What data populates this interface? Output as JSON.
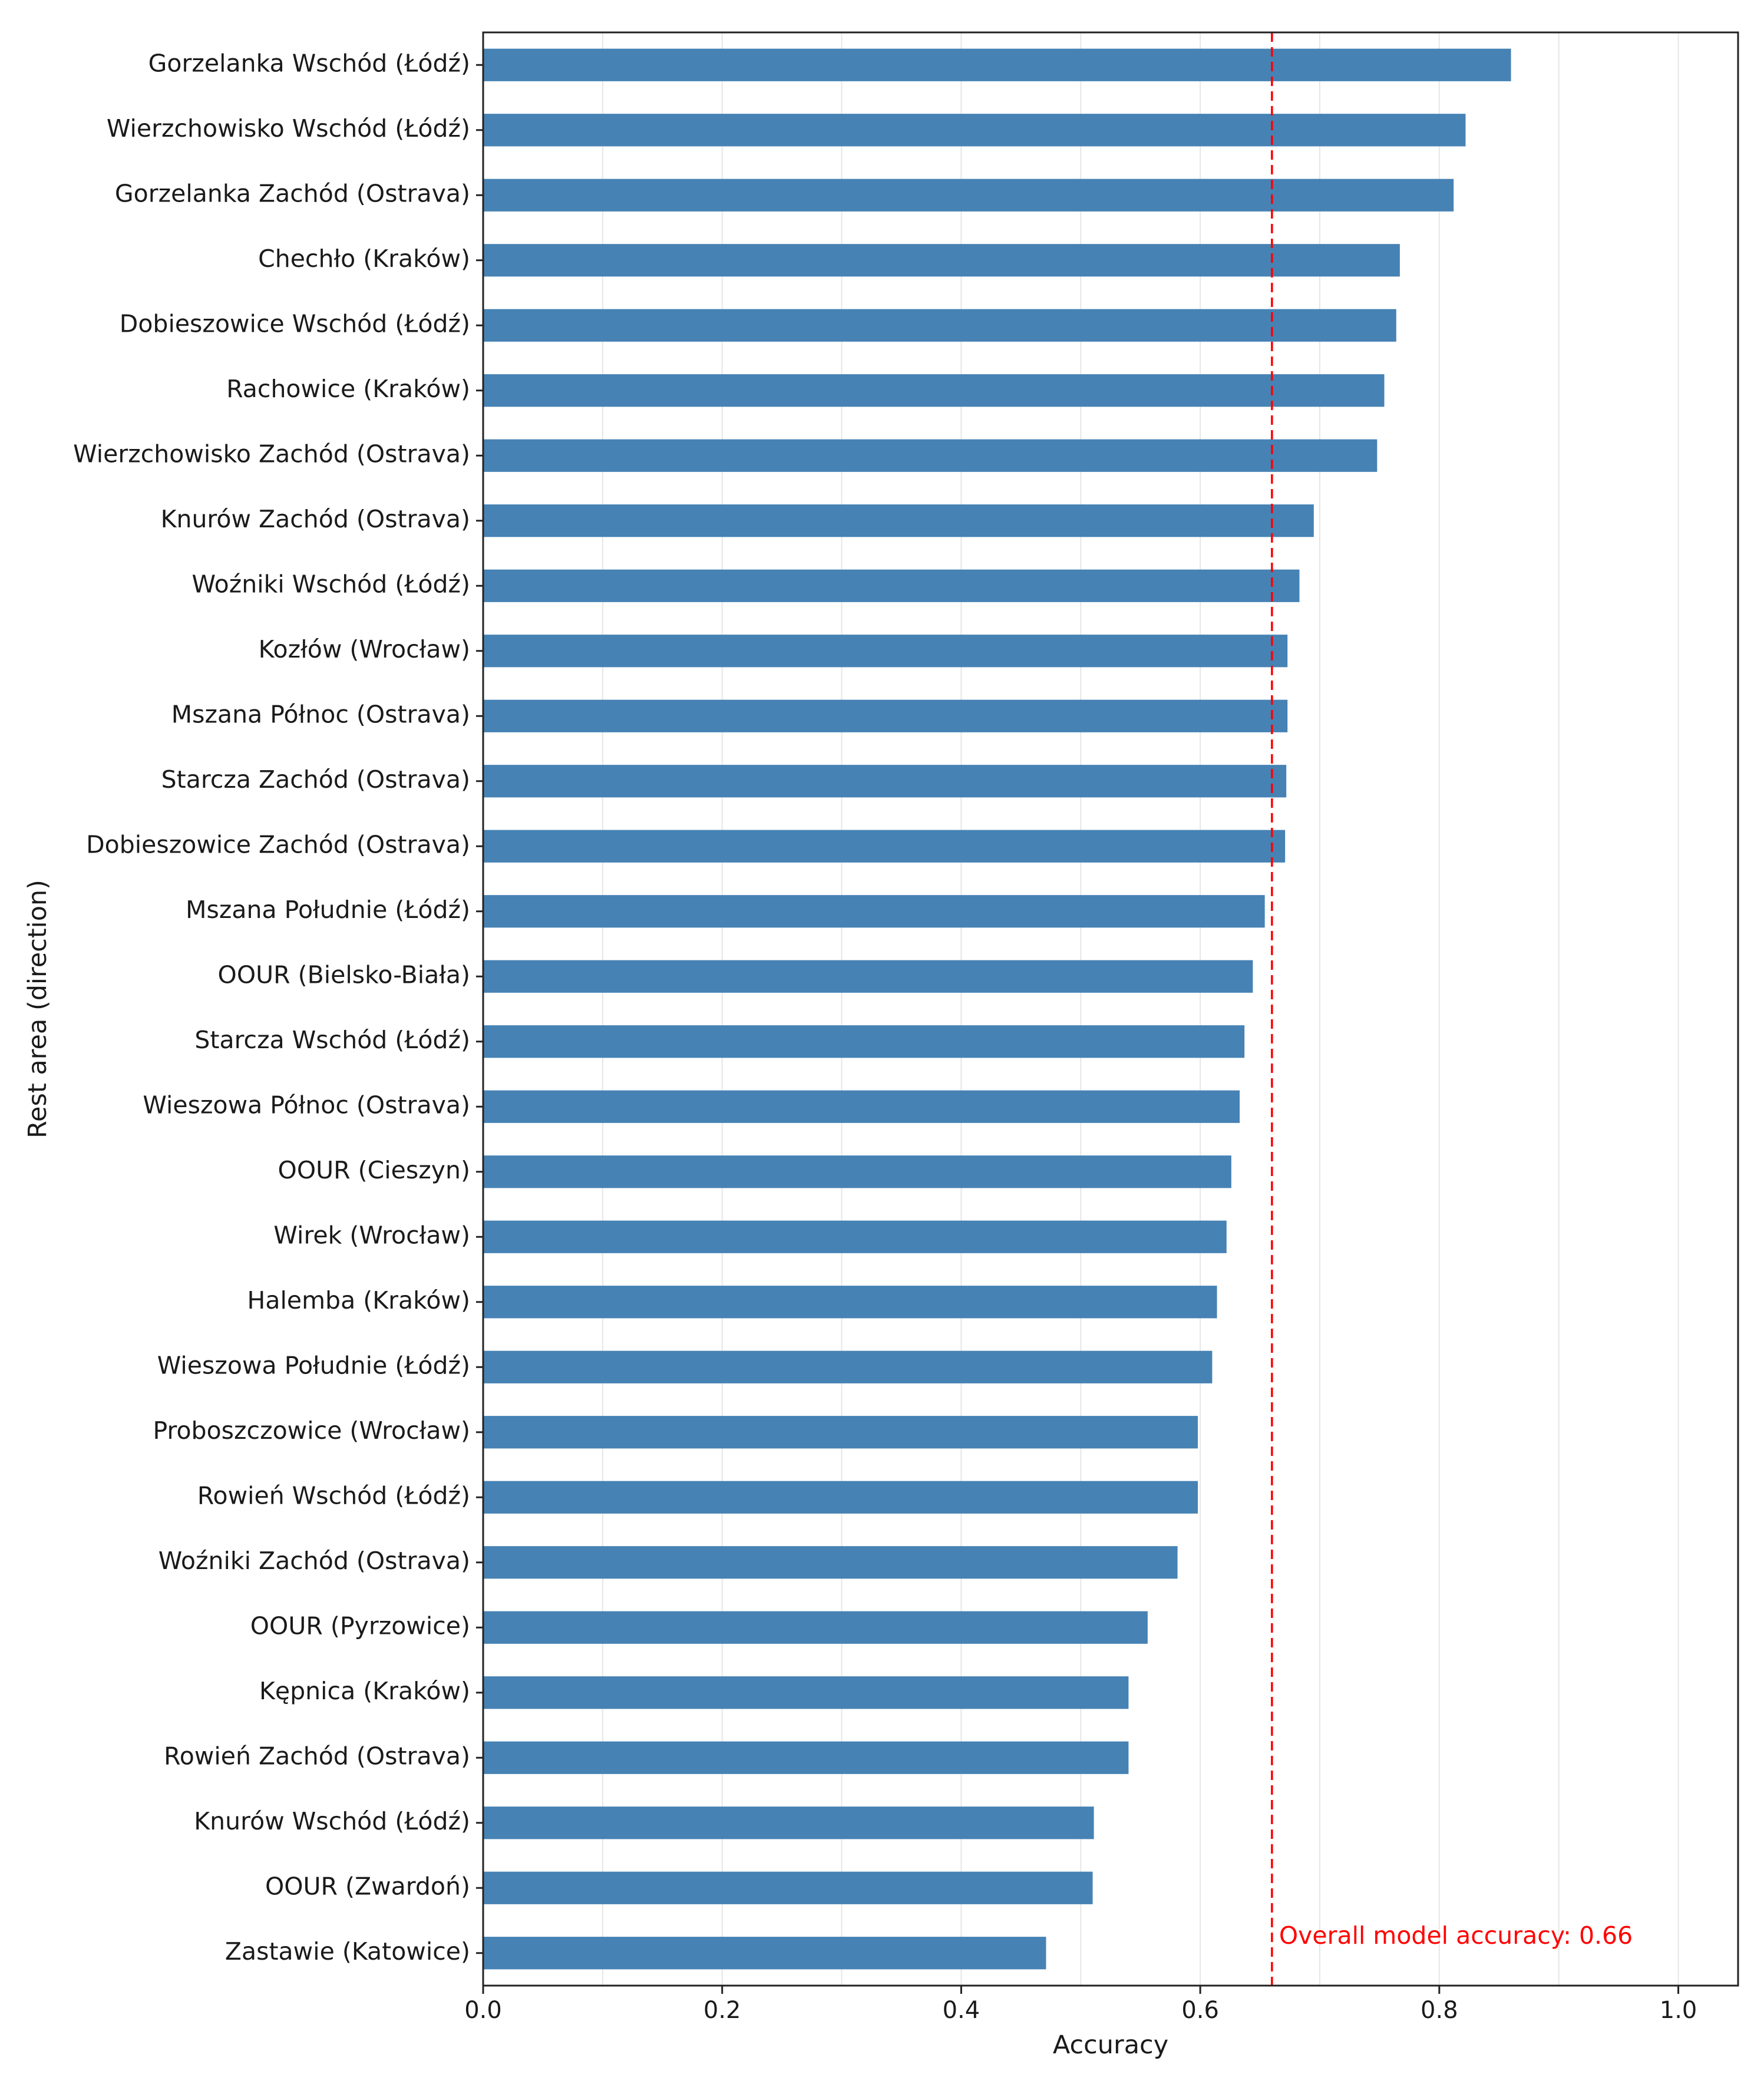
{
  "chart_data": {
    "type": "bar",
    "orientation": "horizontal",
    "title": "",
    "xlabel": "Accuracy",
    "ylabel": "Rest area (direction)",
    "xlim": [
      0.0,
      1.05
    ],
    "xticks": [
      0.0,
      0.2,
      0.4,
      0.6,
      0.8,
      1.0
    ],
    "xtick_labels": [
      "0.0",
      "0.2",
      "0.4",
      "0.6",
      "0.8",
      "1.0"
    ],
    "grid": "vertical",
    "bar_color": "#4682b4",
    "categories": [
      "Gorzelanka Wschód (Łódź)",
      "Wierzchowisko Wschód (Łódź)",
      "Gorzelanka Zachód (Ostrava)",
      "Chechło (Kraków)",
      "Dobieszowice Wschód (Łódź)",
      "Rachowice (Kraków)",
      "Wierzchowisko Zachód (Ostrava)",
      "Knurów Zachód (Ostrava)",
      "Woźniki Wschód (Łódź)",
      "Kozłów (Wrocław)",
      "Mszana Północ (Ostrava)",
      "Starcza Zachód (Ostrava)",
      "Dobieszowice Zachód (Ostrava)",
      "Mszana Południe (Łódź)",
      "OOUR (Bielsko-Biała)",
      "Starcza Wschód (Łódź)",
      "Wieszowa Północ (Ostrava)",
      "OOUR (Cieszyn)",
      "Wirek (Wrocław)",
      "Halemba (Kraków)",
      "Wieszowa Południe (Łódź)",
      "Proboszczowice (Wrocław)",
      "Rowień Wschód (Łódź)",
      "Woźniki Zachód (Ostrava)",
      "OOUR (Pyrzowice)",
      "Kępnica (Kraków)",
      "Rowień Zachód (Ostrava)",
      "Knurów Wschód (Łódź)",
      "OOUR (Zwardoń)",
      "Zastawie (Katowice)"
    ],
    "values": [
      0.86,
      0.822,
      0.812,
      0.767,
      0.764,
      0.754,
      0.748,
      0.695,
      0.683,
      0.673,
      0.673,
      0.672,
      0.671,
      0.654,
      0.644,
      0.637,
      0.633,
      0.626,
      0.622,
      0.614,
      0.61,
      0.598,
      0.598,
      0.581,
      0.556,
      0.54,
      0.54,
      0.511,
      0.51,
      0.471
    ],
    "reference_line": {
      "value": 0.66,
      "color": "#ff0000",
      "style": "dashed",
      "label": "Overall model accuracy: 0.66"
    }
  }
}
